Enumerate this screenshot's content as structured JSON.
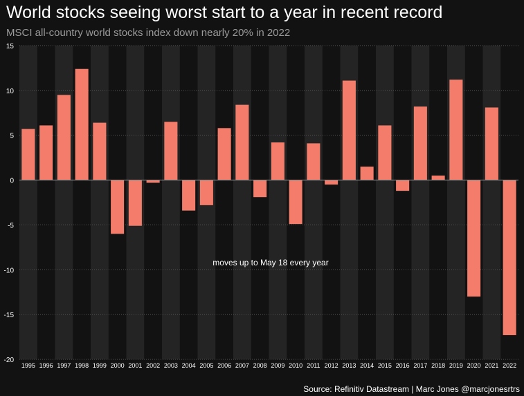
{
  "header": {
    "title": "World stocks seeing worst start to a year in recent record",
    "subtitle": "MSCI all-country world stocks index down nearly 20% in 2022"
  },
  "footer": {
    "source": "Source: Refinitiv Datastream | Marc Jones @marcjonesrtrs"
  },
  "colors": {
    "bar": "#f47c6a",
    "background": "#121212",
    "band": "#242424",
    "grid": "#555555",
    "zero_line": "#8a8a8a",
    "tick_text": "#ffffff"
  },
  "chart_data": {
    "type": "bar",
    "title": "World stocks seeing worst start to a year in recent record",
    "subtitle": "MSCI all-country world stocks index down nearly 20% in 2022",
    "xlabel": "",
    "ylabel": "",
    "ylim": [
      -20,
      15
    ],
    "yticks": [
      15,
      10,
      5,
      0,
      -5,
      -10,
      -15,
      -20
    ],
    "grid": true,
    "legend": "none",
    "annotation": "moves up to May 18 every year",
    "categories": [
      "1995",
      "1996",
      "1997",
      "1998",
      "1999",
      "2000",
      "2001",
      "2002",
      "2003",
      "2004",
      "2005",
      "2006",
      "2007",
      "2008",
      "2009",
      "2010",
      "2011",
      "2012",
      "2013",
      "2014",
      "2015",
      "2016",
      "2017",
      "2018",
      "2019",
      "2020",
      "2021",
      "2022"
    ],
    "values": [
      5.7,
      6.1,
      9.5,
      12.4,
      6.4,
      -6.0,
      -5.1,
      -0.3,
      6.5,
      -3.4,
      -2.8,
      5.8,
      8.4,
      -1.9,
      4.2,
      -4.9,
      4.1,
      -0.5,
      11.1,
      1.5,
      6.1,
      -1.2,
      8.2,
      0.5,
      11.2,
      -13.0,
      8.1,
      -17.3
    ]
  }
}
